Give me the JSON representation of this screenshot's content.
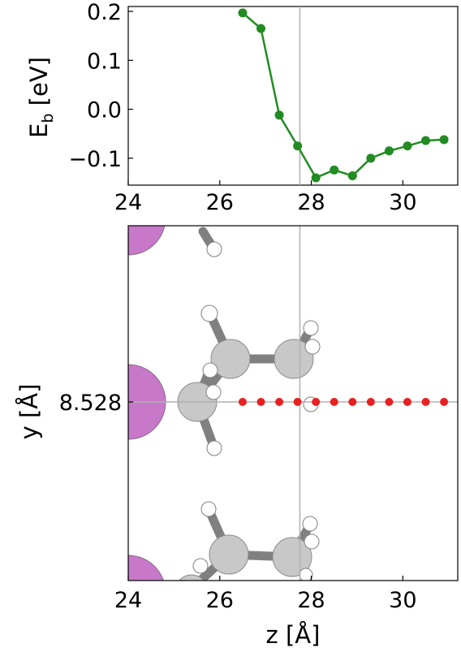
{
  "chart_data": [
    {
      "type": "line",
      "ylabel_main": "E",
      "ylabel_sub": "b",
      "ylabel_unit": " [eV]",
      "xlim": [
        24,
        31.2
      ],
      "ylim": [
        -0.155,
        0.21
      ],
      "grid": false,
      "series": [
        {
          "color": "#228b22",
          "x": [
            26.5,
            26.9,
            27.3,
            27.7,
            28.1,
            28.5,
            28.9,
            29.3,
            29.7,
            30.1,
            30.5,
            30.9
          ],
          "y": [
            0.197,
            0.165,
            -0.012,
            -0.075,
            -0.14,
            -0.124,
            -0.136,
            -0.1,
            -0.085,
            -0.075,
            -0.064,
            -0.062
          ]
        }
      ],
      "xticks": [
        "24",
        "26",
        "28",
        "30"
      ],
      "xtick_values": [
        24,
        26,
        28,
        30
      ],
      "yticks": [
        "0.2",
        "0.1",
        "0.0",
        "−0.1"
      ],
      "ytick_values": [
        0.2,
        0.1,
        0.0,
        -0.1
      ],
      "vline_x": 27.75
    },
    {
      "type": "scatter",
      "xlabel": "z [Å]",
      "ylabel": "y [Å]",
      "xlim": [
        24,
        31.2
      ],
      "grid": false,
      "xticks": [
        "24",
        "26",
        "28",
        "30"
      ],
      "xtick_values": [
        24,
        26,
        28,
        30
      ],
      "yticks": [
        "8.528"
      ],
      "ytick_values": [
        8.528
      ],
      "hline_y": 8.528,
      "vline_x": 27.75,
      "probe_points": {
        "color": "#e82020",
        "x": [
          26.5,
          26.9,
          27.3,
          27.7,
          28.1,
          28.5,
          28.9,
          29.3,
          29.7,
          30.1,
          30.5,
          30.9
        ],
        "y": 8.528
      },
      "atom_colors": {
        "metal": "#c878c8",
        "carbon": "#c8c8c8",
        "hydrogen": "#ffffff",
        "bond": "#808080"
      }
    }
  ]
}
